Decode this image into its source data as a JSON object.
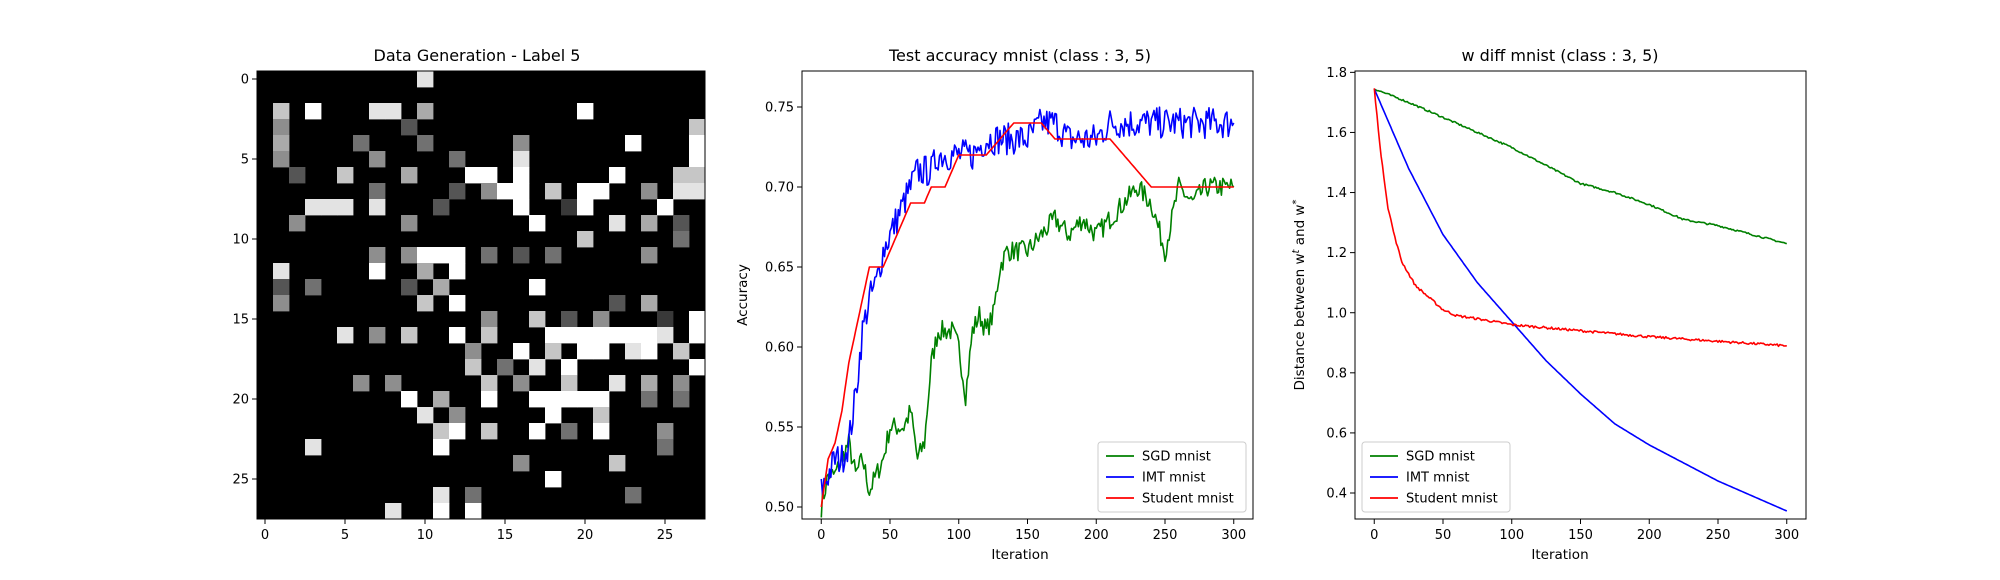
{
  "chart_data": [
    {
      "type": "heatmap",
      "title": "Data Generation - Label 5",
      "colormap": "gray",
      "size": 28,
      "xticks": [
        0,
        5,
        10,
        15,
        20,
        25
      ],
      "yticks": [
        0,
        5,
        10,
        15,
        20,
        25
      ],
      "values_rows": [
        "..........8.................",
        ".........................0..",
        ".7.9...88.6.........9.......",
        ".5.......3.................7",
        ".6....4...4.....5......9...9",
        ".5.....5....4...8..........9",
        "..3..7...6...99.9.....9...77",
        ".......4....3.599.7.99..5.88",
        "...888.8...3....9..29....9..",
        "..5......5.......9....8.6.3",
        "....................7.....4.",
        ".......5.5999.4.3.4.....5...",
        ".8.....9..6.9................",
        ".3.4.....3.6.....9...........",
        ".5........7.9.........3.6...",
        "..............5..7.3.5...2.9",
        ".....8.5.7..9.7...99999998.9",
        ".............5..9.7.99.89.7.",
        ".............7.4.8.9.......9",
        "......5.5.....7.5..7..8.6.5.",
        ".........9.6..9..99999..4.4.",
        "..........8.5.....9..7......",
        "...........79.7..9.4.9...5..",
        "...8.......9.............4..",
        "................5.....7.....",
        "..................9.........",
        "...........8.4.........4....",
        "........8..9.9.............."
      ]
    },
    {
      "type": "line",
      "title": "Test accuracy mnist (class : 3, 5)",
      "xlabel": "Iteration",
      "ylabel": "Accuracy",
      "xlim": [
        -14,
        314
      ],
      "ylim": [
        0.4925,
        0.7725
      ],
      "xticks": [
        0,
        50,
        100,
        150,
        200,
        250,
        300
      ],
      "yticks": [
        0.5,
        0.55,
        0.6,
        0.65,
        0.7,
        0.75
      ],
      "ytick_labels": [
        "0.50",
        "0.55",
        "0.60",
        "0.65",
        "0.70",
        "0.75"
      ],
      "legend": "lower-right",
      "series": [
        {
          "name": "SGD mnist",
          "color": "#008000",
          "noise": 0.0065,
          "x": [
            0,
            5,
            10,
            15,
            20,
            25,
            30,
            35,
            40,
            45,
            50,
            55,
            60,
            65,
            70,
            75,
            80,
            85,
            90,
            95,
            100,
            105,
            110,
            115,
            120,
            125,
            130,
            135,
            140,
            145,
            150,
            160,
            170,
            180,
            190,
            200,
            210,
            220,
            230,
            240,
            250,
            260,
            270,
            280,
            290,
            300
          ],
          "y": [
            0.5,
            0.52,
            0.52,
            0.53,
            0.54,
            0.52,
            0.53,
            0.51,
            0.52,
            0.53,
            0.55,
            0.55,
            0.55,
            0.56,
            0.53,
            0.54,
            0.59,
            0.61,
            0.61,
            0.61,
            0.6,
            0.57,
            0.61,
            0.62,
            0.61,
            0.62,
            0.65,
            0.66,
            0.66,
            0.66,
            0.66,
            0.67,
            0.68,
            0.67,
            0.68,
            0.67,
            0.68,
            0.69,
            0.7,
            0.69,
            0.66,
            0.7,
            0.69,
            0.7,
            0.7,
            0.7
          ]
        },
        {
          "name": "IMT mnist",
          "color": "#0000ff",
          "noise": 0.01,
          "x": [
            0,
            5,
            10,
            15,
            20,
            25,
            30,
            35,
            40,
            45,
            50,
            55,
            60,
            65,
            70,
            75,
            80,
            85,
            90,
            95,
            100,
            110,
            120,
            130,
            140,
            150,
            160,
            170,
            180,
            190,
            200,
            210,
            220,
            230,
            240,
            250,
            260,
            270,
            280,
            290,
            300
          ],
          "y": [
            0.51,
            0.52,
            0.53,
            0.53,
            0.54,
            0.57,
            0.61,
            0.63,
            0.64,
            0.66,
            0.67,
            0.68,
            0.69,
            0.7,
            0.71,
            0.71,
            0.71,
            0.72,
            0.72,
            0.72,
            0.72,
            0.72,
            0.73,
            0.73,
            0.73,
            0.73,
            0.74,
            0.74,
            0.73,
            0.73,
            0.73,
            0.74,
            0.74,
            0.74,
            0.74,
            0.74,
            0.74,
            0.74,
            0.74,
            0.74,
            0.74
          ]
        },
        {
          "name": "Student mnist",
          "color": "#ff0000",
          "noise": 0,
          "x": [
            0,
            5,
            10,
            15,
            20,
            25,
            30,
            35,
            40,
            45,
            50,
            55,
            60,
            65,
            70,
            75,
            80,
            85,
            90,
            95,
            100,
            110,
            120,
            130,
            140,
            150,
            160,
            170,
            180,
            190,
            200,
            210,
            220,
            230,
            240,
            250,
            260,
            270,
            280,
            290,
            300
          ],
          "y": [
            0.5,
            0.53,
            0.54,
            0.56,
            0.59,
            0.61,
            0.63,
            0.65,
            0.65,
            0.65,
            0.66,
            0.67,
            0.68,
            0.69,
            0.69,
            0.69,
            0.7,
            0.7,
            0.7,
            0.71,
            0.72,
            0.72,
            0.72,
            0.73,
            0.74,
            0.74,
            0.74,
            0.73,
            0.73,
            0.73,
            0.73,
            0.73,
            0.72,
            0.71,
            0.7,
            0.7,
            0.7,
            0.7,
            0.7,
            0.7,
            0.7
          ]
        }
      ]
    },
    {
      "type": "line",
      "title": "w diff mnist (class : 3, 5)",
      "xlabel": "Iteration",
      "ylabel": "Distance between w",
      "ylabel_sup1": "t",
      "ylabel_mid": " and w",
      "ylabel_sup2": "*",
      "xlim": [
        -14,
        314
      ],
      "ylim": [
        0.3135,
        1.8045
      ],
      "xticks": [
        0,
        50,
        100,
        150,
        200,
        250,
        300
      ],
      "yticks": [
        0.4,
        0.6,
        0.8,
        1.0,
        1.2,
        1.4,
        1.6,
        1.8
      ],
      "ytick_labels": [
        "0.4",
        "0.6",
        "0.8",
        "1.0",
        "1.2",
        "1.4",
        "1.6",
        "1.8"
      ],
      "legend": "lower-left",
      "series": [
        {
          "name": "SGD mnist",
          "color": "#008000",
          "noise": 0.003,
          "x": [
            0,
            25,
            50,
            75,
            100,
            125,
            150,
            175,
            200,
            225,
            250,
            275,
            300
          ],
          "y": [
            1.745,
            1.7,
            1.65,
            1.6,
            1.55,
            1.49,
            1.43,
            1.4,
            1.36,
            1.31,
            1.29,
            1.26,
            1.23
          ]
        },
        {
          "name": "IMT mnist",
          "color": "#0000ff",
          "noise": 0,
          "x": [
            0,
            25,
            50,
            75,
            100,
            125,
            150,
            175,
            200,
            225,
            250,
            275,
            300
          ],
          "y": [
            1.745,
            1.48,
            1.26,
            1.1,
            0.97,
            0.84,
            0.73,
            0.63,
            0.56,
            0.5,
            0.44,
            0.39,
            0.34
          ]
        },
        {
          "name": "Student mnist",
          "color": "#ff0000",
          "noise": 0.004,
          "x": [
            0,
            5,
            10,
            15,
            20,
            25,
            30,
            40,
            50,
            60,
            75,
            100,
            125,
            150,
            200,
            250,
            300
          ],
          "y": [
            1.745,
            1.52,
            1.35,
            1.25,
            1.17,
            1.13,
            1.09,
            1.05,
            1.01,
            0.99,
            0.98,
            0.96,
            0.95,
            0.94,
            0.92,
            0.905,
            0.89
          ]
        }
      ]
    }
  ]
}
